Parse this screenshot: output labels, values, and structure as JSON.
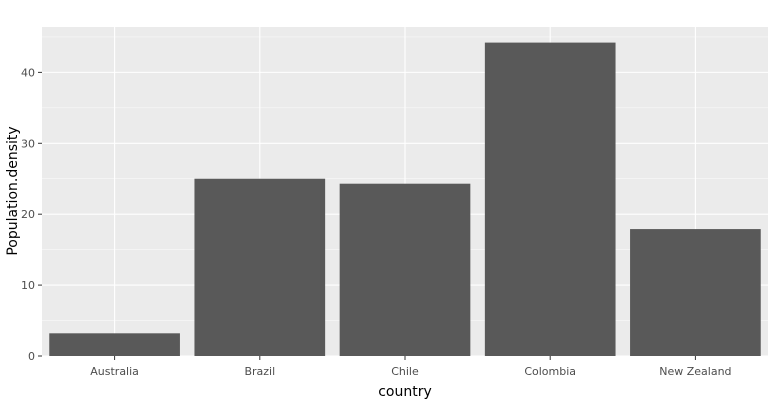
{
  "chart_data": {
    "type": "bar",
    "title": "",
    "xlabel": "country",
    "ylabel": "Population.density",
    "categories": [
      "Australia",
      "Brazil",
      "Chile",
      "Colombia",
      "New Zealand"
    ],
    "values": [
      3.2,
      25.0,
      24.3,
      44.2,
      17.9
    ],
    "ylim": [
      0,
      46.4
    ],
    "yticks": [
      0,
      10,
      20,
      30,
      40
    ],
    "grid": true,
    "legend": "none",
    "colors": {
      "bar": "#595959",
      "panel": "#ebebeb",
      "grid": "#ffffff",
      "tick_mark": "#333333"
    }
  }
}
